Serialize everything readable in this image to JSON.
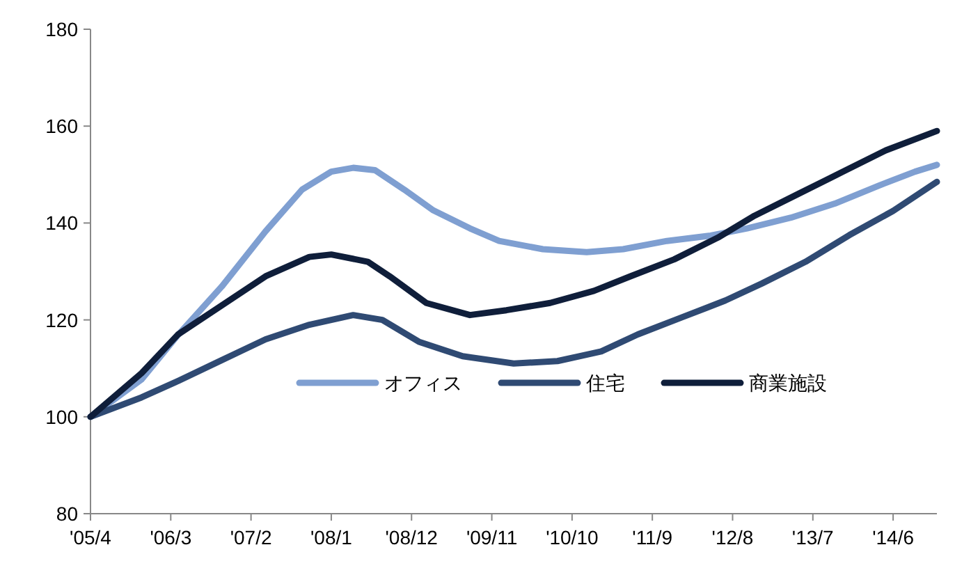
{
  "chart_data": {
    "type": "line",
    "legend": "bottom right",
    "grid": false,
    "marker": "none",
    "line_style": "solid",
    "xlim": [
      "2005-04",
      "2014-12"
    ],
    "xticks": [
      {
        "value": "2005-04",
        "label": "'05/4"
      },
      {
        "value": "2006-03",
        "label": "'06/3"
      },
      {
        "value": "2007-02",
        "label": "'07/2"
      },
      {
        "value": "2008-01",
        "label": "'08/1"
      },
      {
        "value": "2008-12",
        "label": "'08/12"
      },
      {
        "value": "2009-11",
        "label": "'09/11"
      },
      {
        "value": "2010-10",
        "label": "'10/10"
      },
      {
        "value": "2011-09",
        "label": "'11/9"
      },
      {
        "value": "2012-08",
        "label": "'12/8"
      },
      {
        "value": "2013-07",
        "label": "'13/7"
      },
      {
        "value": "2014-06",
        "label": "'14/6"
      }
    ],
    "ylim": [
      80,
      180
    ],
    "yticks": [
      80,
      100,
      120,
      140,
      160,
      180
    ],
    "series": [
      {
        "name": "オフィス",
        "color": "#7f9fd1",
        "x": [
          "2005-04",
          "2005-11",
          "2006-04",
          "2006-10",
          "2007-04",
          "2007-09",
          "2008-01",
          "2008-04",
          "2008-07",
          "2008-11",
          "2009-03",
          "2009-08",
          "2009-12",
          "2010-06",
          "2010-12",
          "2011-05",
          "2011-11",
          "2012-05",
          "2012-10",
          "2013-04",
          "2013-10",
          "2014-04",
          "2014-09",
          "2014-12"
        ],
        "values": [
          100,
          107.7,
          116.9,
          126.9,
          138.3,
          146.9,
          150.6,
          151.4,
          150.9,
          146.9,
          142.6,
          138.9,
          136.3,
          134.6,
          134,
          134.6,
          136.3,
          137.4,
          138.9,
          141.1,
          144,
          147.7,
          150.6,
          152
        ]
      },
      {
        "name": "住宅",
        "color": "#2f4a73",
        "x": [
          "2005-04",
          "2005-11",
          "2006-04",
          "2006-10",
          "2007-04",
          "2007-10",
          "2008-04",
          "2008-08",
          "2009-01",
          "2009-07",
          "2010-02",
          "2010-08",
          "2011-02",
          "2011-07",
          "2012-01",
          "2012-07",
          "2012-12",
          "2013-06",
          "2013-12",
          "2014-06",
          "2014-12"
        ],
        "values": [
          100,
          104,
          107.4,
          111.7,
          116,
          119,
          121,
          120,
          115.5,
          112.5,
          111,
          111.5,
          113.5,
          117,
          120.5,
          124,
          127.5,
          132,
          137.5,
          142.5,
          148.5
        ]
      },
      {
        "name": "商業施設",
        "color": "#0f1e3a",
        "x": [
          "2005-04",
          "2005-11",
          "2006-04",
          "2006-10",
          "2007-04",
          "2007-10",
          "2008-01",
          "2008-06",
          "2008-09",
          "2009-02",
          "2009-08",
          "2010-01",
          "2010-07",
          "2011-01",
          "2011-06",
          "2011-12",
          "2012-06",
          "2012-11",
          "2013-05",
          "2013-11",
          "2014-05",
          "2014-12"
        ],
        "values": [
          100,
          109,
          117,
          123,
          129,
          133,
          133.5,
          132,
          129,
          123.5,
          121,
          122,
          123.5,
          126,
          129,
          132.5,
          137,
          141.5,
          146,
          150.5,
          155,
          159
        ]
      }
    ]
  }
}
